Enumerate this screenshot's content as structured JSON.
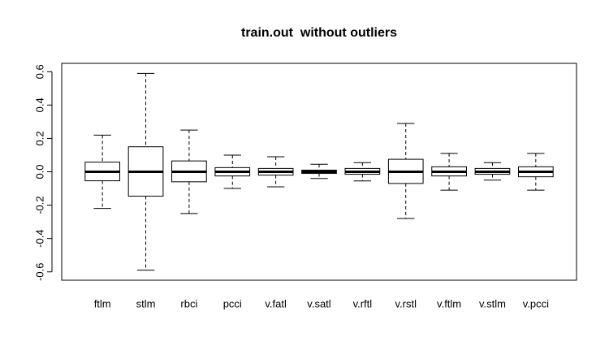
{
  "chart_data": {
    "type": "boxplot",
    "title": "train.out  without outliers",
    "categories": [
      "ftlm",
      "stlm",
      "rbci",
      "pcci",
      "v.fatl",
      "v.satl",
      "v.rftl",
      "v.rstl",
      "v.ftlm",
      "v.stlm",
      "v.pcci"
    ],
    "whisker_high": [
      0.22,
      0.59,
      0.25,
      0.1,
      0.09,
      0.045,
      0.055,
      0.29,
      0.11,
      0.055,
      0.11
    ],
    "q3": [
      0.058,
      0.15,
      0.065,
      0.025,
      0.02,
      0.01,
      0.02,
      0.075,
      0.03,
      0.02,
      0.03
    ],
    "median": [
      0,
      0,
      0,
      0,
      0,
      0,
      0,
      0,
      0,
      0,
      0
    ],
    "q1": [
      -0.054,
      -0.146,
      -0.06,
      -0.025,
      -0.02,
      -0.01,
      -0.015,
      -0.07,
      -0.025,
      -0.015,
      -0.03
    ],
    "whisker_low": [
      -0.22,
      -0.59,
      -0.25,
      -0.1,
      -0.09,
      -0.04,
      -0.055,
      -0.28,
      -0.11,
      -0.05,
      -0.11
    ],
    "ylim": [
      -0.65,
      0.65
    ],
    "yticks": [
      -0.6,
      -0.4,
      -0.2,
      {
        "value": 0,
        "label": "0.0"
      },
      0.2,
      0.4,
      0.6
    ]
  }
}
